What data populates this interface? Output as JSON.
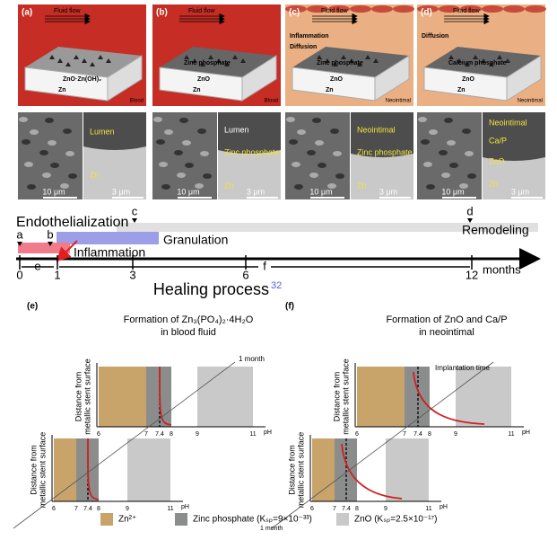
{
  "top_panels": [
    {
      "label": "(a)",
      "flow": "Fluid flow",
      "texts": [
        "ZnO·Zn(OH)₂",
        "Zn"
      ],
      "env": "Blood"
    },
    {
      "label": "(b)",
      "flow": "Fluid flow",
      "texts": [
        "Zinc phosphate",
        "ZnO",
        "Zn"
      ],
      "env": "Blood"
    },
    {
      "label": "(c)",
      "flow": "Fluid flow",
      "texts": [
        "Inflammation",
        "Diffusion",
        "Zinc phosphate",
        "ZnO",
        "Zn"
      ],
      "env": "Neointimal"
    },
    {
      "label": "(d)",
      "flow": "Fluid flow",
      "texts": [
        "Diffusion",
        "Calcium phosphate",
        "ZnO",
        "Zn"
      ],
      "env": "Neointimal"
    }
  ],
  "micrographs": [
    {
      "scale_left": "10 μm",
      "labels": [
        "Lumen",
        "Zn"
      ],
      "scale_right": "3 μm"
    },
    {
      "scale_left": "10 μm",
      "labels": [
        "Lumen",
        "Zinc phosphate",
        "Zn"
      ],
      "scale_right": "3 μm"
    },
    {
      "scale_left": "10 μm",
      "labels": [
        "Neointimal",
        "Zinc phosphate",
        "Zn"
      ],
      "scale_right": "3 μm"
    },
    {
      "scale_left": "10 μm",
      "labels": [
        "Neointimal",
        "Ca/P",
        "ZnO",
        "Zn"
      ],
      "scale_right": "3 μm"
    }
  ],
  "timeline": {
    "phases": [
      "Endothelialization",
      "Granulation",
      "Inflammation",
      "Remodeling"
    ],
    "markers": [
      "a",
      "b",
      "c",
      "d",
      "e",
      "f"
    ],
    "ticks": [
      0,
      1,
      3,
      6,
      12
    ],
    "unit": "months",
    "title": "Healing process",
    "ref": "32"
  },
  "plots": [
    {
      "label": "(e)",
      "title": [
        "Formation of Zn₃(PO₄)₂·4H₂O",
        "in blood fluid"
      ],
      "y_label": [
        "Distance from",
        "metallic stent surface"
      ],
      "x_ticks": [
        6,
        7,
        7.4,
        8,
        9,
        11
      ],
      "x_unit": "pH",
      "time_labels": [
        "1 month"
      ]
    },
    {
      "label": "(f)",
      "title": [
        "Formation of ZnO and Ca/P",
        "in neointimal"
      ],
      "y_label": [
        "Distance from",
        "metallic stent surface"
      ],
      "x_ticks": [
        6,
        7,
        7.4,
        8,
        9,
        11
      ],
      "x_unit": "pH",
      "time_labels": [
        "Implantation time",
        "1 month"
      ]
    }
  ],
  "legend": [
    "Zn²⁺",
    "Zinc phosphate (Kₛₚ=9×10⁻³³)",
    "ZnO (Kₛₚ=2.5×10⁻¹⁷)"
  ]
}
